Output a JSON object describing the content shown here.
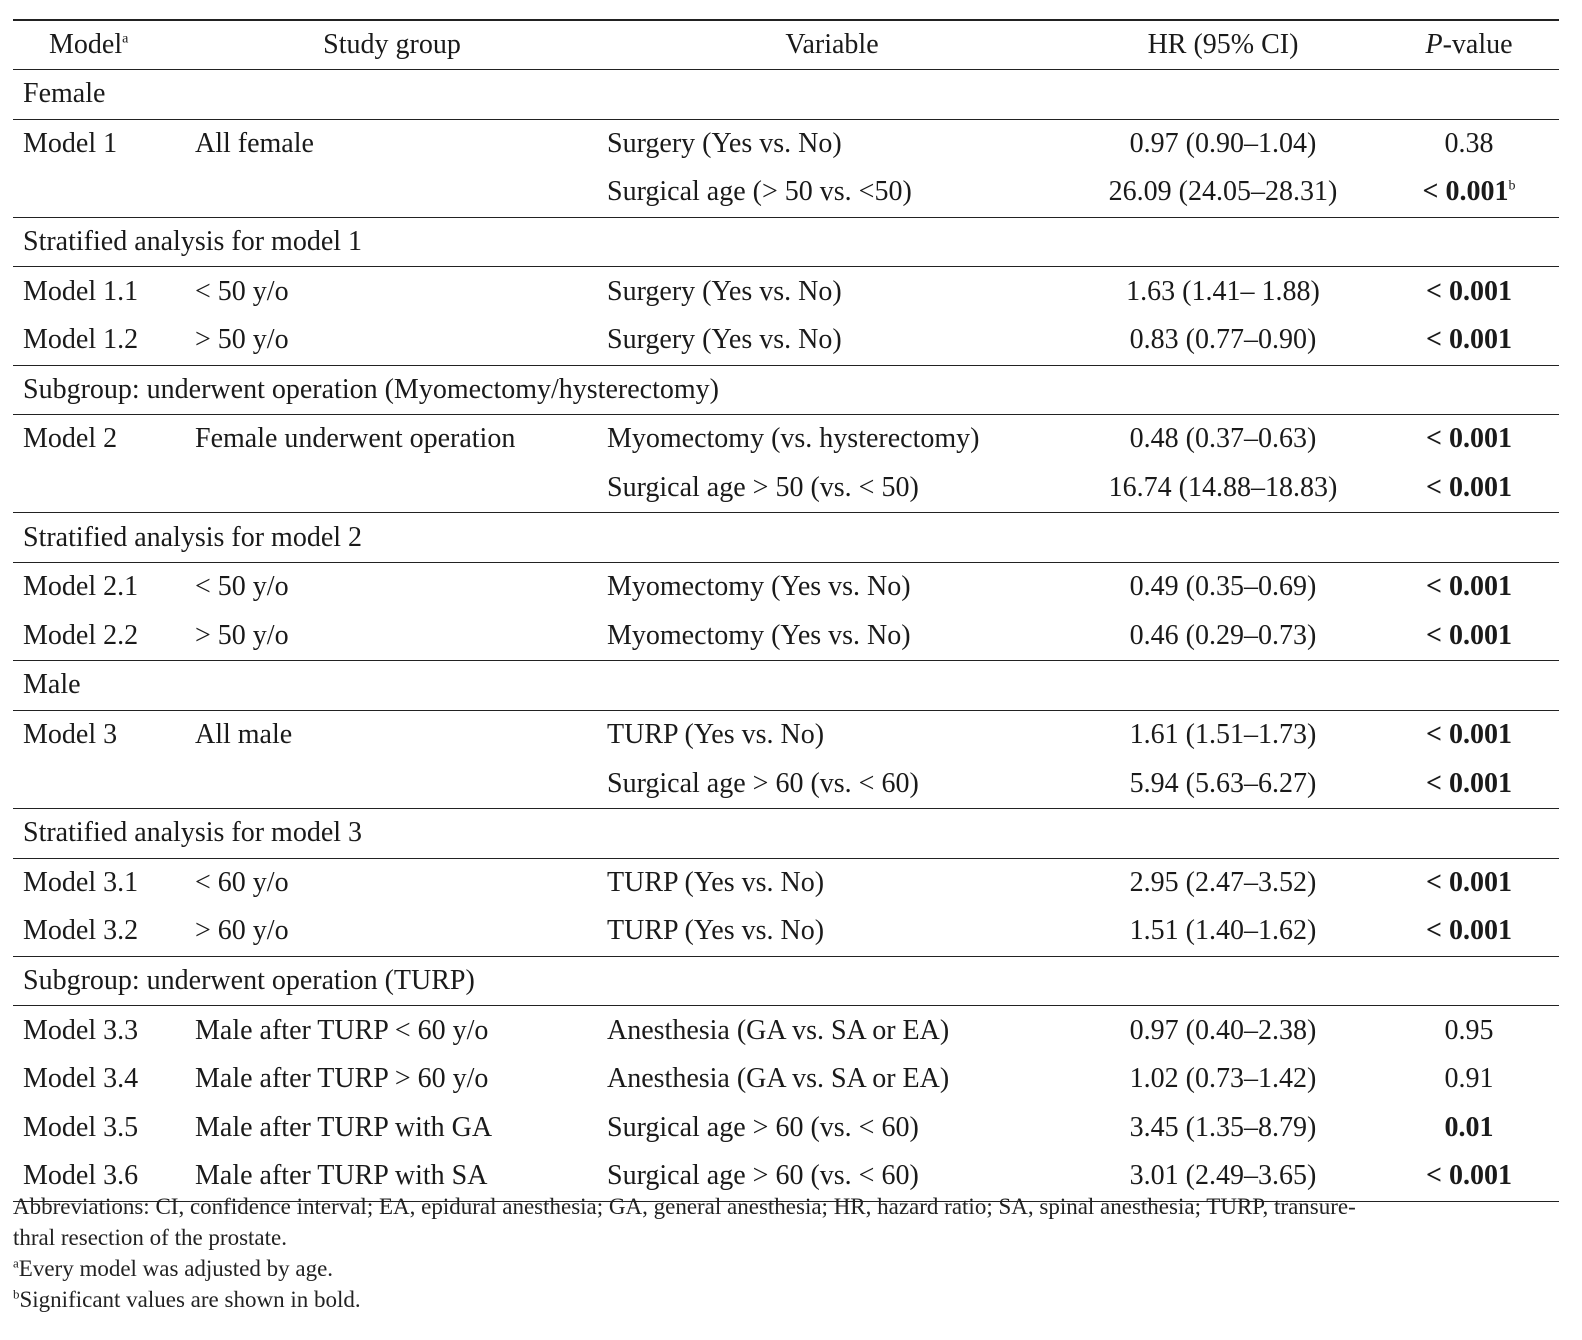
{
  "header": {
    "model": "Model",
    "model_sup": "a",
    "study_group": "Study group",
    "variable": "Variable",
    "hr": "HR (95% CI)",
    "p_italic": "P",
    "p_rest": "-value"
  },
  "rows": [
    {
      "section": "Female"
    },
    {
      "model": "Model 1",
      "group": "All female",
      "variable": "Surgery (Yes vs. No)",
      "hr": "0.97 (0.90–1.04)",
      "p": "0.38"
    },
    {
      "model": "",
      "group": "",
      "variable": "Surgical age (> 50 vs. <50)",
      "hr": "26.09 (24.05–28.31)",
      "p": "< 0.001",
      "p_sup": "b"
    },
    {
      "section": "Stratified analysis for model 1"
    },
    {
      "model": "Model 1.1",
      "group": "< 50 y/o",
      "variable": "Surgery (Yes vs. No)",
      "hr": "1.63 (1.41– 1.88)",
      "p": "< 0.001"
    },
    {
      "model": "Model 1.2",
      "group": "> 50 y/o",
      "variable": "Surgery (Yes vs. No)",
      "hr": "0.83 (0.77–0.90)",
      "p": "< 0.001"
    },
    {
      "section": "Subgroup: underwent operation (Myomectomy/hysterectomy)"
    },
    {
      "model": "Model 2",
      "group": "Female underwent operation",
      "variable": "Myomectomy (vs. hysterectomy)",
      "hr": "0.48 (0.37–0.63)",
      "p": "< 0.001"
    },
    {
      "model": "",
      "group": "",
      "variable": "Surgical age > 50 (vs. < 50)",
      "hr": "16.74 (14.88–18.83)",
      "p": "< 0.001"
    },
    {
      "section": "Stratified analysis for model 2"
    },
    {
      "model": "Model 2.1",
      "group": "< 50 y/o",
      "variable": "Myomectomy (Yes vs. No)",
      "hr": "0.49 (0.35–0.69)",
      "p": "< 0.001"
    },
    {
      "model": "Model 2.2",
      "group": "> 50 y/o",
      "variable": "Myomectomy (Yes vs. No)",
      "hr": "0.46 (0.29–0.73)",
      "p": "< 0.001"
    },
    {
      "section": "Male"
    },
    {
      "model": "Model 3",
      "group": "All male",
      "variable": "TURP (Yes vs. No)",
      "hr": "1.61 (1.51–1.73)",
      "p": "< 0.001"
    },
    {
      "model": "",
      "group": "",
      "variable": "Surgical age > 60 (vs. < 60)",
      "hr": "5.94 (5.63–6.27)",
      "p": "< 0.001"
    },
    {
      "section": "Stratified analysis for model 3"
    },
    {
      "model": "Model 3.1",
      "group": "< 60 y/o",
      "variable": "TURP (Yes vs. No)",
      "hr": "2.95 (2.47–3.52)",
      "p": "< 0.001"
    },
    {
      "model": "Model 3.2",
      "group": "> 60 y/o",
      "variable": "TURP (Yes vs. No)",
      "hr": "1.51 (1.40–1.62)",
      "p": "< 0.001"
    },
    {
      "section": "Subgroup: underwent operation (TURP)"
    },
    {
      "model": "Model 3.3",
      "group": "Male after TURP < 60 y/o",
      "variable": "Anesthesia (GA vs. SA or EA)",
      "hr": "0.97 (0.40–2.38)",
      "p": "0.95"
    },
    {
      "model": "Model 3.4",
      "group": "Male after TURP > 60 y/o",
      "variable": "Anesthesia (GA vs. SA or EA)",
      "hr": "1.02 (0.73–1.42)",
      "p": "0.91"
    },
    {
      "model": "Model 3.5",
      "group": "Male after TURP with GA",
      "variable": "Surgical age > 60 (vs. < 60)",
      "hr": "3.45 (1.35–8.79)",
      "p": "0.01"
    },
    {
      "model": "Model 3.6",
      "group": "Male after TURP with SA",
      "variable": "Surgical age > 60 (vs. < 60)",
      "hr": "3.01 (2.49–3.65)",
      "p": "< 0.001"
    }
  ],
  "significant_p_rows": [
    2,
    4,
    5,
    7,
    8,
    10,
    11,
    13,
    14,
    16,
    17,
    21,
    22
  ],
  "notes": {
    "abbreviations_1": "Abbreviations: CI, confidence interval; EA, epidural anesthesia; GA, general anesthesia; HR, hazard ratio; SA, spinal anesthesia; TURP, transure-",
    "abbreviations_2": "thral resection of the prostate.",
    "a_sup": "a",
    "a_text": "Every model was adjusted by age.",
    "b_sup": "b",
    "b_text": "Significant values are shown in bold."
  }
}
